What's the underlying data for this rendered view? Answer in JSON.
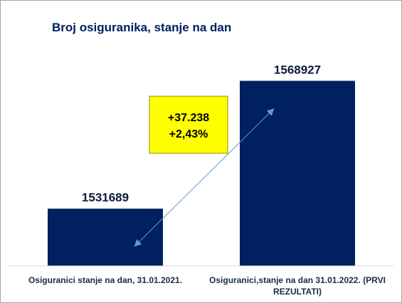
{
  "chart_data": {
    "type": "bar",
    "title": "Broj osiguranika, stanje na dan",
    "categories": [
      "Osiguranici stanje na dan, 31.01.2021.",
      "Osiguranici,stanje na dan 31.01.2022. (PRVI REZULTATI)"
    ],
    "category_lines": [
      [
        "Osiguranici stanje na dan, 31.01.2021."
      ],
      [
        "Osiguranici,stanje na dan 31.01.2022. (PRVI",
        "REZULTATI)"
      ]
    ],
    "values": [
      1531689,
      1568927
    ],
    "data_labels": [
      "1531689",
      "1568927"
    ],
    "ylim": [
      1515000,
      1571500
    ],
    "grid": false,
    "bar_color": "#002060",
    "annotation": {
      "lines": [
        "+37.238",
        "+2,43%"
      ],
      "fill": "#ffff00",
      "border": "#8c8c00"
    },
    "arrow_color": "#5b9bd5"
  }
}
